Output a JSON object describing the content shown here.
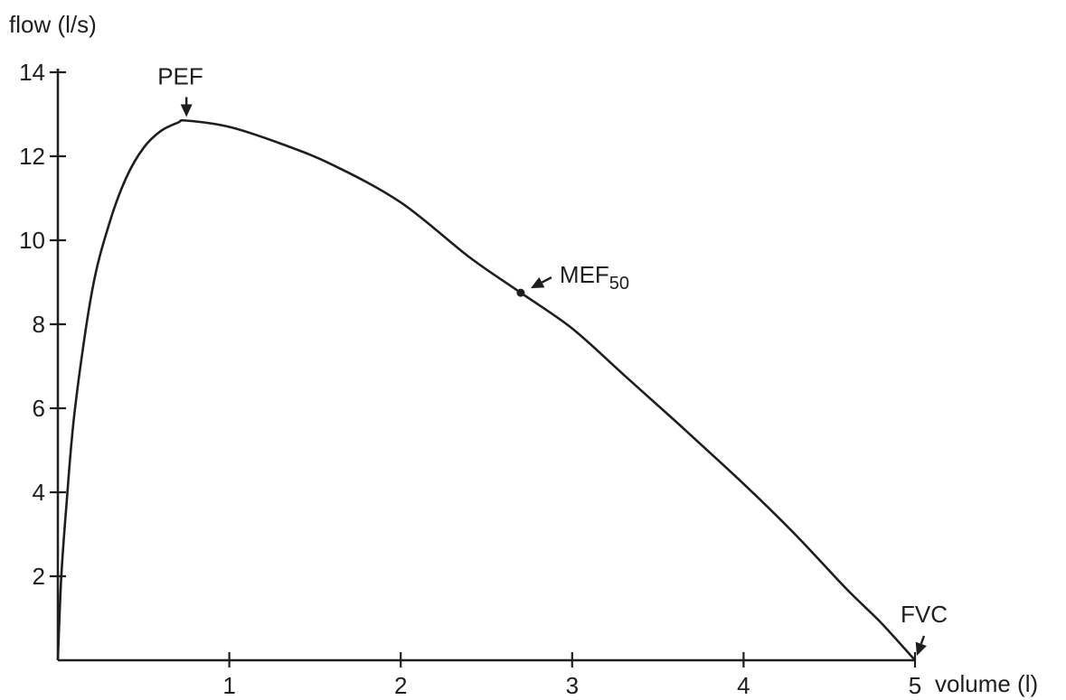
{
  "chart_data": {
    "type": "line",
    "ylabel": "flow (l/s)",
    "xlabel": "volume (l)",
    "xlim": [
      0,
      5
    ],
    "ylim": [
      0,
      14
    ],
    "xticks": [
      1,
      2,
      3,
      4,
      5
    ],
    "xtick_labels": [
      "1",
      "2",
      "3",
      "4",
      "5"
    ],
    "yticks": [
      2,
      4,
      6,
      8,
      10,
      12,
      14
    ],
    "ytick_labels": [
      "2",
      "4",
      "6",
      "8",
      "10",
      "12",
      "14"
    ],
    "grid": false,
    "legend": "none",
    "line_color": "#1e1e1e",
    "series": [
      {
        "x": [
          0,
          0.02,
          0.05,
          0.1,
          0.2,
          0.3,
          0.4,
          0.5,
          0.6,
          0.7,
          0.75,
          1.0,
          1.3,
          1.6,
          2.0,
          2.4,
          2.7,
          3.0,
          3.3,
          3.6,
          4.0,
          4.3,
          4.6,
          4.8,
          5.0
        ],
        "y": [
          0,
          2.0,
          3.7,
          6.0,
          8.8,
          10.4,
          11.5,
          12.2,
          12.6,
          12.8,
          12.85,
          12.7,
          12.3,
          11.8,
          10.9,
          9.6,
          8.75,
          7.9,
          6.8,
          5.7,
          4.2,
          3.0,
          1.7,
          0.9,
          0
        ]
      }
    ],
    "annotations": [
      {
        "text": "PEF",
        "x": 0.75,
        "y": 12.85,
        "marker": "arrow"
      },
      {
        "text": "MEF",
        "sub": "50",
        "x": 2.7,
        "y": 8.75,
        "marker": "dot-arrow"
      },
      {
        "text": "FVC",
        "x": 5.0,
        "y": 0,
        "marker": "arrow"
      }
    ]
  }
}
